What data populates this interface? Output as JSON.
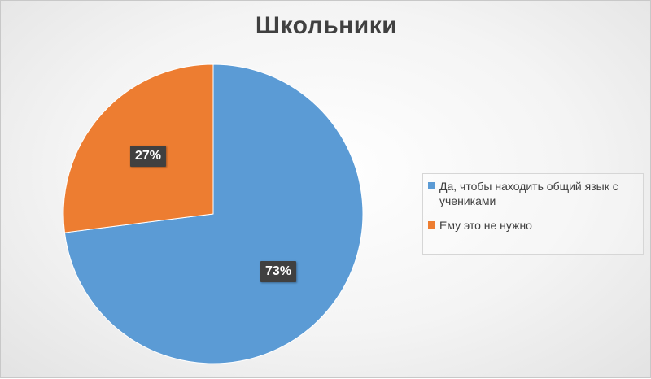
{
  "chart_data": {
    "type": "pie",
    "title": "Школьники",
    "start_angle_deg": 0,
    "direction": "clockwise",
    "series": [
      {
        "slices": [
          {
            "label": "Да, чтобы находить общий язык с учениками",
            "value": 73,
            "display": "73%",
            "color": "#5B9BD5"
          },
          {
            "label": "Ему это не нужно",
            "value": 27,
            "display": "27%",
            "color": "#ED7D31"
          }
        ]
      }
    ],
    "legend_position": "right",
    "data_labels": true
  }
}
